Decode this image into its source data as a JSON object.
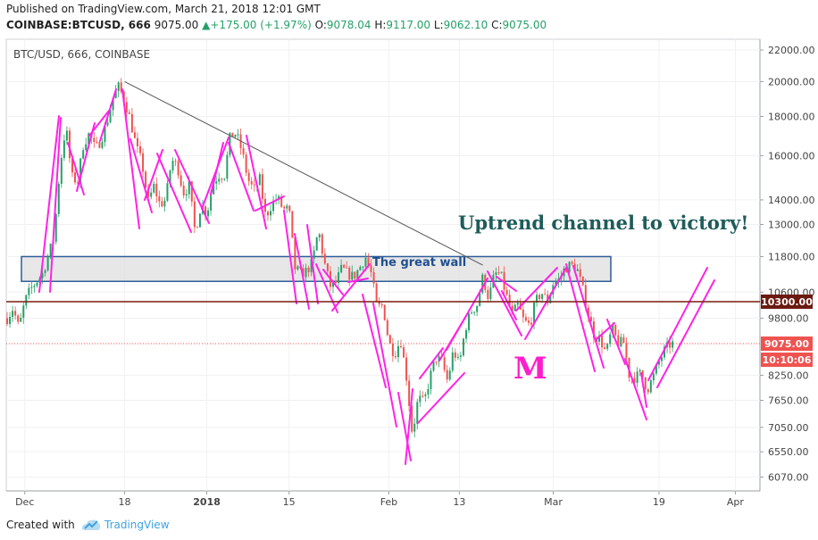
{
  "header": {
    "published": "Published on TradingView.com, March 21, 2018 12:01 GMT",
    "symbol": "COINBASE:BTCUSD, 666",
    "price": "9075.00",
    "change": "+175.00 (+1.97%)",
    "o_label": "O:",
    "o_value": "9078.04",
    "h_label": "H:",
    "h_value": "9117.00",
    "l_label": "L:",
    "l_value": "9062.10",
    "c_label": "C:",
    "c_value": "9075.00"
  },
  "footer": {
    "created_with": "Created with",
    "brand": "TradingView"
  },
  "colors": {
    "up": "#26a069",
    "down": "#ef5350",
    "pink": "#ff22e6",
    "level_line": "#7a1c0e",
    "wall_fill": "#e1e1e1",
    "wall_border": "#2e5d99",
    "title_text": "#1e5c5a",
    "m_text": "#ff1ecb",
    "price_badge": "#ef5350"
  },
  "chart_data": {
    "type": "candlestick",
    "title": "BTC/USD, 666, COINBASE",
    "y_scale": "log",
    "ylim": [
      5900,
      22600
    ],
    "y_ticks": [
      {
        "value": 22000,
        "label": "22000.00"
      },
      {
        "value": 20000,
        "label": "20000.00"
      },
      {
        "value": 18000,
        "label": "18000.00"
      },
      {
        "value": 16000,
        "label": "16000.00"
      },
      {
        "value": 14000,
        "label": "14000.00"
      },
      {
        "value": 13000,
        "label": "13000.00"
      },
      {
        "value": 11800,
        "label": "11800.00"
      },
      {
        "value": 10600,
        "label": "10600.00"
      },
      {
        "value": 9800,
        "label": "9800.00"
      },
      {
        "value": 8250,
        "label": "8250.00"
      },
      {
        "value": 7650,
        "label": "7650.00"
      },
      {
        "value": 7050,
        "label": "7050.00"
      },
      {
        "value": 6550,
        "label": "6550.00"
      },
      {
        "value": 6070,
        "label": "6070.00"
      }
    ],
    "x_ticks": [
      {
        "date": "2017-12-01",
        "label": "Dec"
      },
      {
        "date": "2017-12-18",
        "label": "18"
      },
      {
        "date": "2018-01-01",
        "label": "2018"
      },
      {
        "date": "2018-01-15",
        "label": "15"
      },
      {
        "date": "2018-02-01",
        "label": "Feb"
      },
      {
        "date": "2018-02-13",
        "label": "13"
      },
      {
        "date": "2018-03-01",
        "label": "Mar"
      },
      {
        "date": "2018-03-19",
        "label": "19"
      },
      {
        "date": "2018-04-01",
        "label": "Apr"
      }
    ],
    "xlim": [
      "2017-11-28",
      "2018-04-02"
    ],
    "price_path": [
      [
        "2017-11-28",
        9800
      ],
      [
        "2017-11-29",
        10100
      ],
      [
        "2017-11-30",
        9500
      ],
      [
        "2017-12-01",
        10300
      ],
      [
        "2017-12-02",
        10700
      ],
      [
        "2017-12-04",
        11200
      ],
      [
        "2017-12-06",
        12500
      ],
      [
        "2017-12-07",
        15500
      ],
      [
        "2017-12-08",
        17500
      ],
      [
        "2017-12-09",
        15000
      ],
      [
        "2017-12-10",
        14800
      ],
      [
        "2017-12-11",
        16600
      ],
      [
        "2017-12-12",
        17100
      ],
      [
        "2017-12-13",
        16300
      ],
      [
        "2017-12-14",
        16800
      ],
      [
        "2017-12-15",
        17700
      ],
      [
        "2017-12-16",
        19000
      ],
      [
        "2017-12-17",
        19700
      ],
      [
        "2017-12-18",
        18900
      ],
      [
        "2017-12-19",
        17800
      ],
      [
        "2017-12-20",
        16400
      ],
      [
        "2017-12-21",
        15600
      ],
      [
        "2017-12-22",
        13900
      ],
      [
        "2017-12-23",
        14600
      ],
      [
        "2017-12-24",
        13800
      ],
      [
        "2017-12-25",
        14000
      ],
      [
        "2017-12-26",
        15800
      ],
      [
        "2017-12-27",
        15500
      ],
      [
        "2017-12-28",
        14300
      ],
      [
        "2017-12-29",
        14600
      ],
      [
        "2017-12-30",
        12700
      ],
      [
        "2017-12-31",
        13800
      ],
      [
        "2018-01-01",
        13400
      ],
      [
        "2018-01-02",
        14700
      ],
      [
        "2018-01-03",
        15100
      ],
      [
        "2018-01-04",
        15100
      ],
      [
        "2018-01-05",
        17000
      ],
      [
        "2018-01-06",
        17100
      ],
      [
        "2018-01-07",
        16200
      ],
      [
        "2018-01-08",
        14900
      ],
      [
        "2018-01-09",
        14400
      ],
      [
        "2018-01-10",
        14900
      ],
      [
        "2018-01-11",
        13300
      ],
      [
        "2018-01-12",
        13800
      ],
      [
        "2018-01-13",
        14100
      ],
      [
        "2018-01-14",
        13600
      ],
      [
        "2018-01-15",
        13600
      ],
      [
        "2018-01-16",
        11400
      ],
      [
        "2018-01-17",
        11200
      ],
      [
        "2018-01-18",
        11300
      ],
      [
        "2018-01-19",
        11600
      ],
      [
        "2018-01-20",
        12800
      ],
      [
        "2018-01-21",
        11600
      ],
      [
        "2018-01-22",
        10800
      ],
      [
        "2018-01-23",
        10900
      ],
      [
        "2018-01-24",
        11400
      ],
      [
        "2018-01-25",
        11200
      ],
      [
        "2018-01-26",
        11100
      ],
      [
        "2018-01-27",
        11400
      ],
      [
        "2018-01-28",
        11800
      ],
      [
        "2018-01-29",
        11200
      ],
      [
        "2018-01-30",
        10100
      ],
      [
        "2018-01-31",
        10200
      ],
      [
        "2018-02-01",
        9100
      ],
      [
        "2018-02-02",
        8800
      ],
      [
        "2018-02-03",
        9200
      ],
      [
        "2018-02-04",
        8200
      ],
      [
        "2018-02-05",
        6900
      ],
      [
        "2018-02-06",
        7700
      ],
      [
        "2018-02-07",
        7600
      ],
      [
        "2018-02-08",
        8200
      ],
      [
        "2018-02-09",
        8700
      ],
      [
        "2018-02-10",
        8600
      ],
      [
        "2018-02-11",
        8100
      ],
      [
        "2018-02-12",
        8900
      ],
      [
        "2018-02-13",
        8500
      ],
      [
        "2018-02-14",
        9500
      ],
      [
        "2018-02-15",
        10000
      ],
      [
        "2018-02-16",
        10200
      ],
      [
        "2018-02-17",
        11100
      ],
      [
        "2018-02-18",
        10400
      ],
      [
        "2018-02-19",
        11200
      ],
      [
        "2018-02-20",
        11200
      ],
      [
        "2018-02-21",
        10500
      ],
      [
        "2018-02-22",
        9900
      ],
      [
        "2018-02-23",
        10200
      ],
      [
        "2018-02-24",
        9700
      ],
      [
        "2018-02-25",
        9600
      ],
      [
        "2018-02-26",
        10300
      ],
      [
        "2018-02-27",
        10600
      ],
      [
        "2018-02-28",
        10300
      ],
      [
        "2018-03-01",
        10900
      ],
      [
        "2018-03-02",
        11000
      ],
      [
        "2018-03-03",
        11400
      ],
      [
        "2018-03-04",
        11500
      ],
      [
        "2018-03-05",
        11400
      ],
      [
        "2018-03-06",
        10700
      ],
      [
        "2018-03-07",
        9900
      ],
      [
        "2018-03-08",
        9300
      ],
      [
        "2018-03-09",
        9200
      ],
      [
        "2018-03-10",
        8800
      ],
      [
        "2018-03-11",
        9500
      ],
      [
        "2018-03-12",
        9100
      ],
      [
        "2018-03-13",
        9100
      ],
      [
        "2018-03-14",
        8200
      ],
      [
        "2018-03-15",
        8200
      ],
      [
        "2018-03-16",
        8300
      ],
      [
        "2018-03-17",
        7900
      ],
      [
        "2018-03-18",
        8200
      ],
      [
        "2018-03-19",
        8600
      ],
      [
        "2018-03-20",
        8900
      ],
      [
        "2018-03-21",
        9075
      ]
    ],
    "annotations": {
      "title_note": "Uptrend channel to victory!",
      "wall_label": "The great wall",
      "pattern_label": "M",
      "level": {
        "value": 10300,
        "label": "10300.00"
      },
      "last_price": {
        "value": 9075,
        "label": "9075.00"
      },
      "countdown": "10:10:06",
      "wall_range": [
        10950,
        11800
      ],
      "trendline": [
        [
          "2017-12-18",
          20000
        ],
        [
          "2018-02-17",
          11500
        ]
      ]
    }
  }
}
